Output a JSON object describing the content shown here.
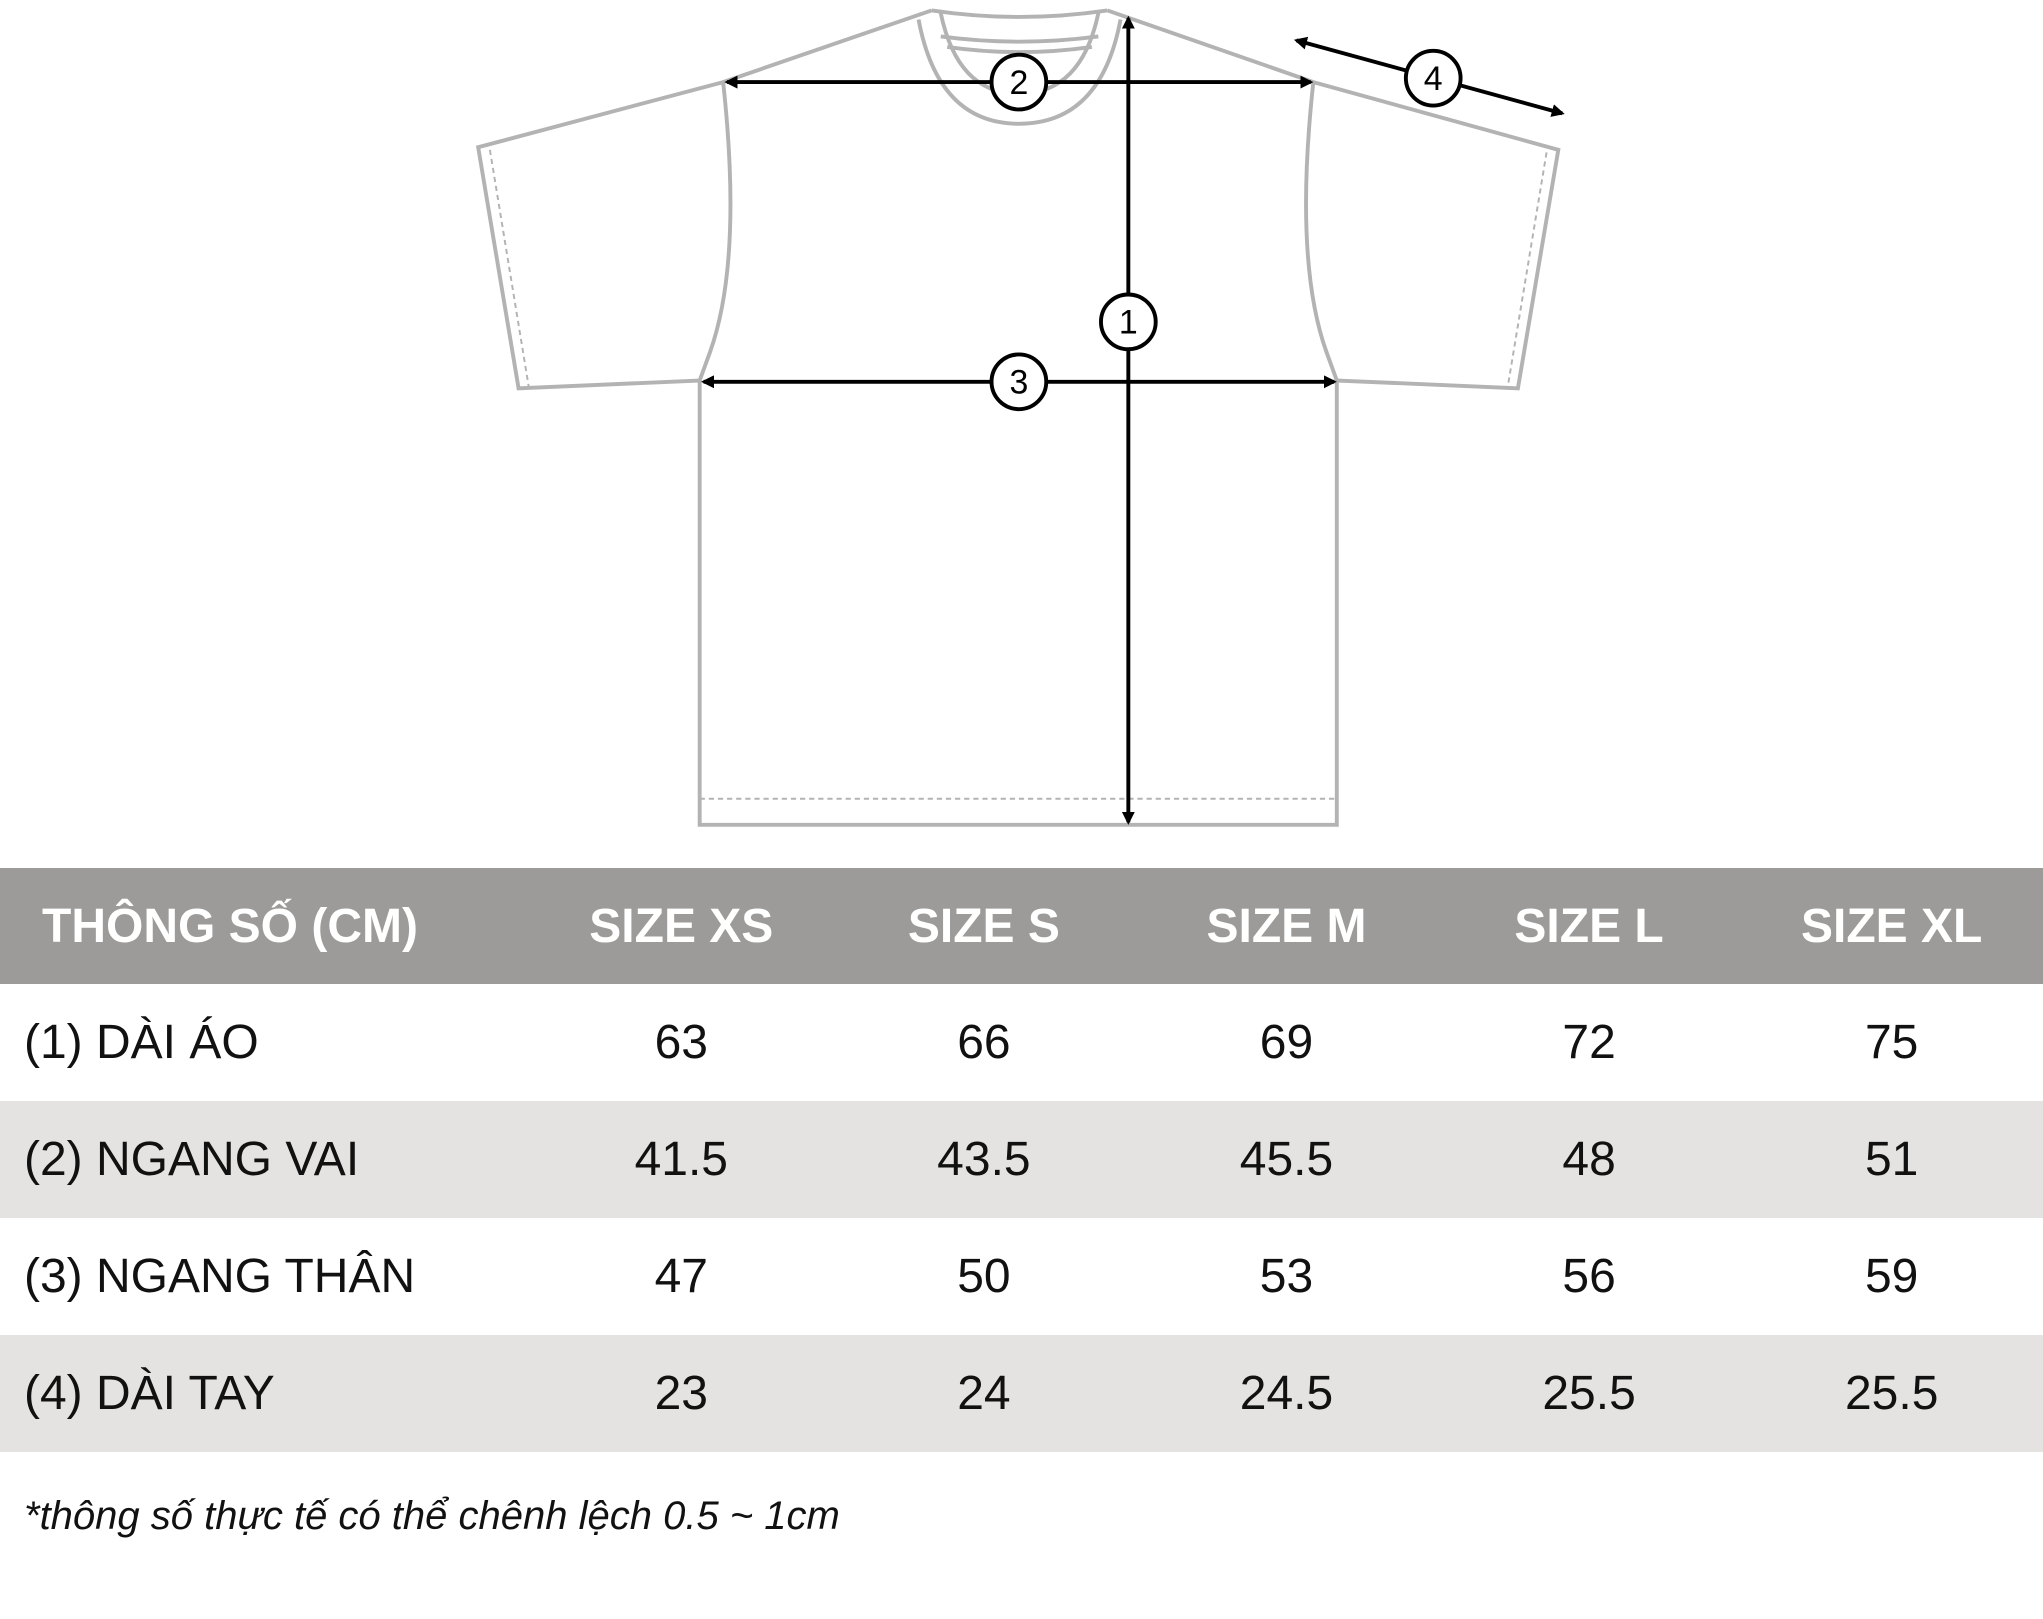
{
  "diagram": {
    "labels": [
      "1",
      "2",
      "3",
      "4"
    ],
    "colors": {
      "outline": "#b3b3b3",
      "arrow": "#000000"
    }
  },
  "table": {
    "headers": [
      "THÔNG SỐ (CM)",
      "SIZE XS",
      "SIZE S",
      "SIZE M",
      "SIZE L",
      "SIZE XL"
    ],
    "rows": [
      {
        "label": "(1) DÀI ÁO",
        "values": [
          "63",
          "66",
          "69",
          "72",
          "75"
        ]
      },
      {
        "label": "(2) NGANG VAI",
        "values": [
          "41.5",
          "43.5",
          "45.5",
          "48",
          "51"
        ]
      },
      {
        "label": "(3) NGANG THÂN",
        "values": [
          "47",
          "50",
          "53",
          "56",
          "59"
        ]
      },
      {
        "label": "(4) DÀI TAY",
        "values": [
          "23",
          "24",
          "24.5",
          "25.5",
          "25.5"
        ]
      }
    ],
    "colors": {
      "header_bg": "#9c9b99",
      "stripe_bg": "#e4e3e1"
    }
  },
  "note": "*thông số thực tế có thể chênh lệch 0.5 ~ 1cm"
}
